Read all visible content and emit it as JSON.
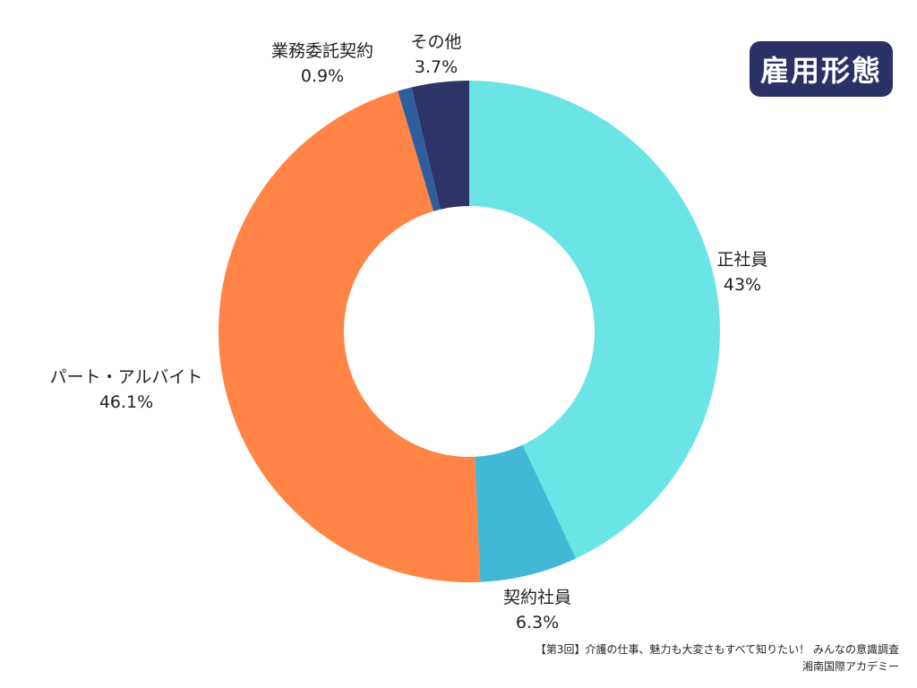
{
  "title": "雇用形態",
  "chart_data": {
    "type": "pie",
    "style": "donut",
    "categories": [
      "正社員",
      "契約社員",
      "パート・アルバイト",
      "業務委託契約",
      "その他"
    ],
    "values": [
      43,
      6.3,
      46.1,
      0.9,
      3.7
    ],
    "value_labels": [
      "43%",
      "6.3%",
      "46.1%",
      "0.9%",
      "3.7%"
    ],
    "colors": [
      "#6be4e8",
      "#43b8d6",
      "#ff8445",
      "#2e5f9c",
      "#2f3468"
    ],
    "start": "12 o'clock",
    "direction": "clockwise"
  },
  "labels": {
    "seishain": {
      "name": "正社員",
      "pct": "43%"
    },
    "keiyaku": {
      "name": "契約社員",
      "pct": "6.3%"
    },
    "part": {
      "name": "パート・アルバイト",
      "pct": "46.1%"
    },
    "itaku": {
      "name": "業務委託契約",
      "pct": "0.9%"
    },
    "other": {
      "name": "その他",
      "pct": "3.7%"
    }
  },
  "source": {
    "line1": "【第3回】介護の仕事、魅力も大変さもすべて知りたい！ みんなの意識調査",
    "line2": "湘南国際アカデミー"
  }
}
